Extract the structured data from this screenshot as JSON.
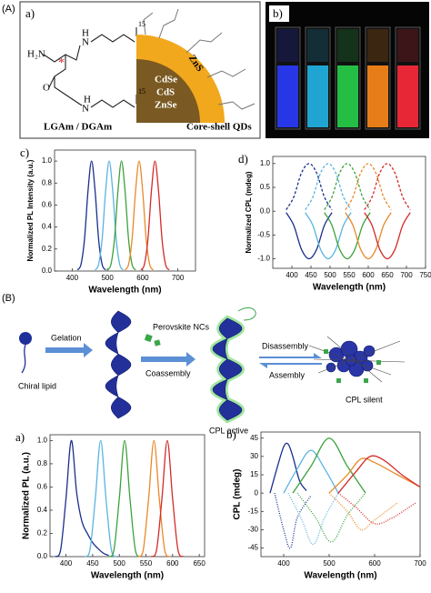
{
  "labels": {
    "A": "(A)",
    "B": "(B)",
    "a": "a)",
    "b": "b)"
  },
  "panel_a": {
    "molecule": [
      "H₂N",
      "N",
      "H",
      "15",
      "O",
      "N",
      "H",
      "15",
      "O",
      "*"
    ],
    "molecule_name": "LGAm / DGAm",
    "qd_layers": [
      "CdSe",
      "CdS",
      "ZnSe"
    ],
    "shell": "ZnS",
    "qd_name": "Core-shell QDs"
  },
  "schematic": {
    "chiral_lipid": "Chiral lipid",
    "gelation": "Gelation",
    "perovskite": "Perovskite NCs",
    "coassembly": "Coassembly",
    "disassembly": "Disassembly",
    "assembly": "Assembly",
    "cpl_active": "CPL active",
    "cpl_silent": "CPL silent"
  },
  "chart_data": [
    {
      "type": "line",
      "label": "c)",
      "xlabel": "Wavelength (nm)",
      "ylabel": "Normalized PL Intensity (a.u.)",
      "xlim": [
        350,
        750
      ],
      "xticks": [
        400,
        500,
        600,
        700
      ],
      "ylim": [
        0,
        1.1
      ],
      "yticks": [
        {
          "value": 0,
          "label": "0.0"
        },
        0.2,
        0.4,
        0.6,
        0.8,
        {
          "value": 1,
          "label": "1.0"
        }
      ],
      "series": [
        {
          "color": "#1b2f8c",
          "style": "solid",
          "x": [
            415,
            425,
            435,
            445,
            455,
            465,
            475,
            485,
            495
          ],
          "values": [
            0.01,
            0.06,
            0.29,
            0.73,
            1,
            0.73,
            0.29,
            0.06,
            0.01
          ]
        },
        {
          "color": "#5ab4e0",
          "style": "solid",
          "x": [
            465,
            475,
            485,
            495,
            505,
            515,
            525,
            535,
            545
          ],
          "values": [
            0.01,
            0.06,
            0.29,
            0.73,
            1,
            0.73,
            0.29,
            0.06,
            0.01
          ]
        },
        {
          "color": "#3ca23c",
          "style": "solid",
          "x": [
            500,
            510,
            520,
            530,
            540,
            550,
            560,
            570,
            580
          ],
          "values": [
            0.01,
            0.06,
            0.29,
            0.73,
            1,
            0.73,
            0.29,
            0.06,
            0.01
          ]
        },
        {
          "color": "#e8892a",
          "style": "solid",
          "x": [
            550,
            560,
            570,
            580,
            590,
            600,
            610,
            620,
            630
          ],
          "values": [
            0.01,
            0.06,
            0.29,
            0.73,
            1,
            0.73,
            0.29,
            0.06,
            0.01
          ]
        },
        {
          "color": "#d42a2a",
          "style": "solid",
          "x": [
            595,
            605,
            615,
            625,
            635,
            645,
            655,
            665,
            675
          ],
          "values": [
            0.01,
            0.06,
            0.29,
            0.73,
            1,
            0.73,
            0.29,
            0.06,
            0.01
          ]
        }
      ]
    },
    {
      "type": "line",
      "label": "d)",
      "xlabel": "Wavelength (nm)",
      "ylabel": "Normalized CPL (mdeg)",
      "xlim": [
        350,
        750
      ],
      "xticks": [
        400,
        450,
        500,
        550,
        600,
        650,
        700,
        750
      ],
      "ylim": [
        -1.2,
        1.15
      ],
      "yticks": [
        {
          "value": -1,
          "label": "-1.0"
        },
        -0.5,
        {
          "value": 0,
          "label": "0.0"
        },
        0.5,
        {
          "value": 1,
          "label": "1.0"
        }
      ],
      "series": [
        {
          "color": "#1b2f8c",
          "style": "dashed",
          "x": [
            385,
            405,
            425,
            445,
            465,
            485,
            505
          ],
          "values": [
            0.03,
            0.3,
            0.8,
            1,
            0.8,
            0.3,
            0.03
          ]
        },
        {
          "color": "#5ab4e0",
          "style": "dashed",
          "x": [
            435,
            455,
            475,
            495,
            515,
            535,
            555
          ],
          "values": [
            0.03,
            0.3,
            0.8,
            1,
            0.8,
            0.3,
            0.03
          ]
        },
        {
          "color": "#3ca23c",
          "style": "dashed",
          "x": [
            485,
            505,
            525,
            545,
            565,
            585,
            605
          ],
          "values": [
            0.03,
            0.3,
            0.8,
            1,
            0.8,
            0.3,
            0.03
          ]
        },
        {
          "color": "#e8892a",
          "style": "dashed",
          "x": [
            540,
            560,
            580,
            600,
            620,
            640,
            660
          ],
          "values": [
            0.03,
            0.3,
            0.8,
            1,
            0.8,
            0.3,
            0.03
          ]
        },
        {
          "color": "#d42a2a",
          "style": "dashed",
          "x": [
            590,
            610,
            630,
            650,
            670,
            690,
            710
          ],
          "values": [
            0.03,
            0.3,
            0.8,
            1,
            0.8,
            0.3,
            0.03
          ]
        },
        {
          "color": "#1b2f8c",
          "style": "solid",
          "x": [
            385,
            405,
            425,
            445,
            465,
            485,
            505
          ],
          "values": [
            -0.03,
            -0.3,
            -0.8,
            -1,
            -0.8,
            -0.3,
            -0.03
          ]
        },
        {
          "color": "#5ab4e0",
          "style": "solid",
          "x": [
            435,
            455,
            475,
            495,
            515,
            535,
            555
          ],
          "values": [
            -0.03,
            -0.3,
            -0.8,
            -1,
            -0.8,
            -0.3,
            -0.03
          ]
        },
        {
          "color": "#3ca23c",
          "style": "solid",
          "x": [
            485,
            505,
            525,
            545,
            565,
            585,
            605
          ],
          "values": [
            -0.03,
            -0.3,
            -0.8,
            -1,
            -0.8,
            -0.3,
            -0.03
          ]
        },
        {
          "color": "#e8892a",
          "style": "solid",
          "x": [
            540,
            560,
            580,
            600,
            620,
            640,
            660
          ],
          "values": [
            -0.03,
            -0.3,
            -0.8,
            -1,
            -0.8,
            -0.3,
            -0.03
          ]
        },
        {
          "color": "#d42a2a",
          "style": "solid",
          "x": [
            590,
            610,
            630,
            650,
            670,
            690,
            710
          ],
          "values": [
            -0.03,
            -0.3,
            -0.8,
            -1,
            -0.8,
            -0.3,
            -0.03
          ]
        }
      ]
    },
    {
      "type": "line",
      "label": "a)",
      "xlabel": "Wavelength (nm)",
      "ylabel": "Normalized PL (a.u.)",
      "xlim": [
        370,
        660
      ],
      "xticks": [
        400,
        450,
        500,
        550,
        600,
        650
      ],
      "ylim": [
        0,
        1.05
      ],
      "yticks": [
        {
          "value": 0,
          "label": "0.0"
        },
        0.2,
        0.4,
        0.6,
        0.8,
        {
          "value": 1,
          "label": "1.0"
        }
      ],
      "series": [
        {
          "color": "#1b2f8c",
          "style": "solid",
          "x": [
            380,
            390,
            400,
            410,
            420,
            430,
            440,
            450,
            460,
            470,
            480
          ],
          "values": [
            0,
            0.06,
            0.5,
            1,
            0.55,
            0.3,
            0.2,
            0.12,
            0.07,
            0.03,
            0.01
          ]
        },
        {
          "color": "#5ab4e0",
          "style": "solid",
          "x": [
            435,
            445,
            455,
            465,
            475,
            485,
            495
          ],
          "values": [
            0,
            0.06,
            0.5,
            1,
            0.5,
            0.06,
            0
          ]
        },
        {
          "color": "#3ca23c",
          "style": "solid",
          "x": [
            480,
            490,
            500,
            510,
            520,
            530,
            540
          ],
          "values": [
            0,
            0.06,
            0.5,
            1,
            0.5,
            0.06,
            0
          ]
        },
        {
          "color": "#e8892a",
          "style": "solid",
          "x": [
            535,
            545,
            555,
            565,
            575,
            585,
            595
          ],
          "values": [
            0,
            0.06,
            0.5,
            1,
            0.5,
            0.06,
            0
          ]
        },
        {
          "color": "#d42a2a",
          "style": "solid",
          "x": [
            560,
            570,
            580,
            590,
            600,
            610,
            620
          ],
          "values": [
            0,
            0.06,
            0.5,
            1,
            0.5,
            0.06,
            0
          ]
        }
      ]
    },
    {
      "type": "line",
      "label": "b)",
      "xlabel": "Wavelength (nm)",
      "ylabel": "CPL (mdeg)",
      "xlim": [
        350,
        700
      ],
      "xticks": [
        400,
        500,
        600,
        700
      ],
      "ylim": [
        -52,
        50
      ],
      "yticks": [
        -45,
        -30,
        -15,
        0,
        15,
        30,
        45
      ],
      "series": [
        {
          "color": "#1b2f8c",
          "style": "solid",
          "x": [
            370,
            385,
            400,
            410,
            420,
            435,
            450
          ],
          "values": [
            0,
            20,
            38,
            40,
            30,
            10,
            2
          ]
        },
        {
          "color": "#5ab4e0",
          "style": "solid",
          "x": [
            400,
            430,
            460,
            490,
            520
          ],
          "values": [
            0,
            20,
            35,
            20,
            0
          ]
        },
        {
          "color": "#3ca23c",
          "style": "solid",
          "x": [
            420,
            460,
            500,
            540,
            580
          ],
          "values": [
            0,
            22,
            45,
            22,
            0
          ]
        },
        {
          "color": "#e8892a",
          "style": "solid",
          "x": [
            500,
            540,
            570,
            600,
            650,
            700
          ],
          "values": [
            0,
            15,
            28,
            25,
            15,
            5
          ]
        },
        {
          "color": "#d42a2a",
          "style": "solid",
          "x": [
            520,
            560,
            590,
            620,
            660,
            700
          ],
          "values": [
            0,
            18,
            30,
            27,
            15,
            5
          ]
        },
        {
          "color": "#1b2f8c",
          "style": "dotted",
          "x": [
            380,
            400,
            415,
            430,
            460
          ],
          "values": [
            0,
            -30,
            -45,
            -20,
            -2
          ]
        },
        {
          "color": "#5ab4e0",
          "style": "dotted",
          "x": [
            410,
            440,
            465,
            490,
            520
          ],
          "values": [
            0,
            -22,
            -42,
            -20,
            0
          ]
        },
        {
          "color": "#3ca23c",
          "style": "dotted",
          "x": [
            430,
            470,
            505,
            540,
            580
          ],
          "values": [
            0,
            -20,
            -40,
            -18,
            0
          ]
        },
        {
          "color": "#e8892a",
          "style": "dotted",
          "x": [
            500,
            540,
            570,
            600,
            650
          ],
          "values": [
            0,
            -15,
            -30,
            -22,
            -8
          ]
        },
        {
          "color": "#d42a2a",
          "style": "dotted",
          "x": [
            520,
            560,
            600,
            640,
            690
          ],
          "values": [
            0,
            -12,
            -25,
            -20,
            -8
          ]
        }
      ]
    }
  ]
}
